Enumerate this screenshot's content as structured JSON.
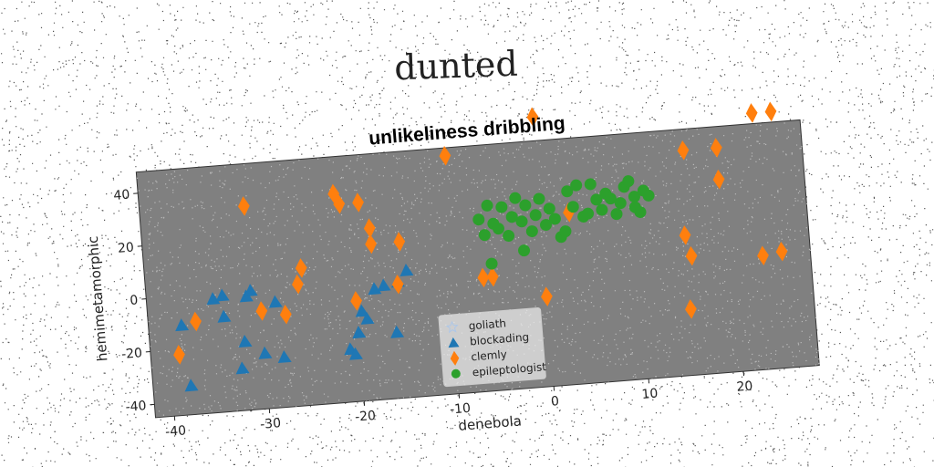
{
  "figure": {
    "suptitle": "dunted"
  },
  "chart_data": {
    "type": "scatter",
    "title": "unlikeliness dribbling",
    "xlabel": "denebola",
    "ylabel": "hemimetamorphic",
    "xlim": [
      -42,
      28
    ],
    "ylim": [
      -45,
      48
    ],
    "xticks": [
      -40,
      -30,
      -20,
      -10,
      0,
      10,
      20
    ],
    "yticks": [
      -40,
      -20,
      0,
      20,
      40
    ],
    "grid": false,
    "legend_position": "bottom-center",
    "background_color": "#808080",
    "series": [
      {
        "name": "goliath",
        "marker": "star",
        "color": "#aec7e8",
        "points": []
      },
      {
        "name": "blockading",
        "marker": "triangle",
        "color": "#1f77b4",
        "points": [
          [
            -38.5,
            -11
          ],
          [
            -38,
            -34
          ],
          [
            -35,
            -2
          ],
          [
            -34,
            -1
          ],
          [
            -34,
            -9
          ],
          [
            -32.5,
            -29
          ],
          [
            -32,
            -19
          ],
          [
            -31.5,
            -2
          ],
          [
            -31,
            0
          ],
          [
            -30,
            -24
          ],
          [
            -28.5,
            -5
          ],
          [
            -28,
            -26
          ],
          [
            -21,
            -25
          ],
          [
            -20.5,
            -27
          ],
          [
            -20,
            -19
          ],
          [
            -19.5,
            -11
          ],
          [
            -19,
            -14
          ],
          [
            -18,
            -3
          ],
          [
            -17,
            -2
          ],
          [
            -16,
            -20
          ],
          [
            -15.5,
            -1
          ],
          [
            -14.5,
            3
          ]
        ]
      },
      {
        "name": "clemly",
        "marker": "diamond",
        "color": "#ff7f0e",
        "points": [
          [
            -39,
            -22
          ],
          [
            -37,
            -10
          ],
          [
            -31,
            32
          ],
          [
            -30,
            -8
          ],
          [
            -27.5,
            -10
          ],
          [
            -26,
            1
          ],
          [
            -25.5,
            7
          ],
          [
            -21.5,
            34
          ],
          [
            -21,
            30
          ],
          [
            -20,
            -7
          ],
          [
            -19,
            30
          ],
          [
            -18,
            14
          ],
          [
            -18,
            20
          ],
          [
            -15,
            14
          ],
          [
            -15.5,
            -2
          ],
          [
            -9.5,
            45
          ],
          [
            -6.5,
            -2
          ],
          [
            -5.5,
            -2
          ],
          [
            0,
            57
          ],
          [
            0,
            -11
          ],
          [
            3,
            20
          ],
          [
            15,
            -20
          ],
          [
            15,
            8
          ],
          [
            15.5,
            0
          ],
          [
            15.5,
            40
          ],
          [
            19,
            28
          ],
          [
            19,
            40
          ],
          [
            23,
            -2
          ],
          [
            23,
            52
          ],
          [
            25,
            -1
          ],
          [
            25,
            52
          ]
        ]
      },
      {
        "name": "epileptologist",
        "marker": "circle",
        "color": "#2ca02c",
        "points": [
          [
            -6.5,
            20
          ],
          [
            -6,
            14
          ],
          [
            -5.5,
            25
          ],
          [
            -5,
            18
          ],
          [
            -4.5,
            16
          ],
          [
            -4,
            24
          ],
          [
            -3.5,
            13
          ],
          [
            -3,
            20
          ],
          [
            -2.5,
            27
          ],
          [
            -2,
            18
          ],
          [
            -2,
            7
          ],
          [
            -1.5,
            24
          ],
          [
            -1,
            14
          ],
          [
            -0.5,
            20
          ],
          [
            0,
            26
          ],
          [
            0.5,
            16
          ],
          [
            1,
            22
          ],
          [
            1.5,
            18
          ],
          [
            2,
            11
          ],
          [
            2.5,
            13
          ],
          [
            3,
            28
          ],
          [
            3.5,
            22
          ],
          [
            4,
            30
          ],
          [
            4.5,
            18
          ],
          [
            5,
            19
          ],
          [
            5.5,
            30
          ],
          [
            6,
            24
          ],
          [
            6.5,
            20
          ],
          [
            7,
            26
          ],
          [
            7.5,
            24
          ],
          [
            8,
            18
          ],
          [
            8.5,
            22
          ],
          [
            9,
            28
          ],
          [
            9.5,
            30
          ],
          [
            10,
            20
          ],
          [
            10,
            24
          ],
          [
            10.5,
            18
          ],
          [
            11,
            26
          ],
          [
            11.5,
            24
          ],
          [
            -5.5,
            3
          ]
        ]
      }
    ]
  }
}
